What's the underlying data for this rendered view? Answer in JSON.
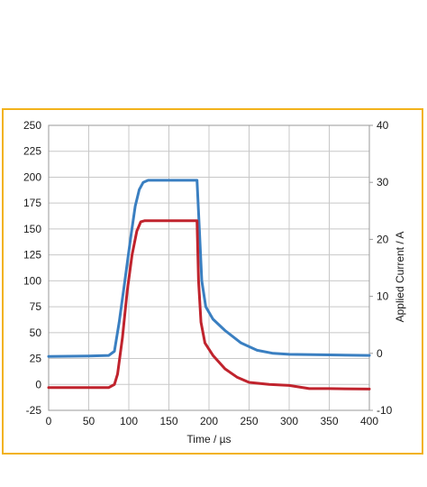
{
  "colors": {
    "frame_border": "#f2b21b",
    "grid": "#c8c8c8",
    "plot_border": "#9a9a9a",
    "series_blue": "#3a7fc1",
    "series_red": "#c0232d"
  },
  "chart_data": {
    "type": "line",
    "title": "",
    "xlabel": "Time / µs",
    "ylabel_left": "",
    "ylabel_right": "Applied Current / A",
    "xlim": [
      0,
      400
    ],
    "ylim_left": [
      -25,
      250
    ],
    "ylim_right": [
      -10,
      40
    ],
    "x_ticks": [
      "0",
      "50",
      "100",
      "150",
      "200",
      "250",
      "300",
      "350",
      "400"
    ],
    "y_ticks_left": [
      "250",
      "225",
      "200",
      "175",
      "150",
      "125",
      "100",
      "75",
      "50",
      "25",
      "0",
      "-25"
    ],
    "y_ticks_right": [
      "40",
      "30",
      "20",
      "10",
      "0",
      "-10"
    ],
    "grid": true,
    "legend": "none",
    "series": [
      {
        "axis": "left",
        "color": "#3a7fc1",
        "points": [
          [
            0,
            27
          ],
          [
            50,
            27.5
          ],
          [
            75,
            28
          ],
          [
            82,
            32
          ],
          [
            88,
            60
          ],
          [
            95,
            100
          ],
          [
            102,
            140
          ],
          [
            108,
            172
          ],
          [
            113,
            188
          ],
          [
            118,
            195
          ],
          [
            124,
            197
          ],
          [
            150,
            197
          ],
          [
            185,
            197
          ],
          [
            188,
            150
          ],
          [
            191,
            100
          ],
          [
            196,
            75
          ],
          [
            205,
            63
          ],
          [
            220,
            52
          ],
          [
            240,
            40
          ],
          [
            260,
            33
          ],
          [
            280,
            30
          ],
          [
            300,
            29
          ],
          [
            350,
            28.5
          ],
          [
            400,
            28
          ]
        ]
      },
      {
        "axis": "left",
        "color": "#c0232d",
        "points": [
          [
            0,
            -3
          ],
          [
            50,
            -3
          ],
          [
            75,
            -3
          ],
          [
            82,
            0
          ],
          [
            86,
            10
          ],
          [
            92,
            45
          ],
          [
            98,
            90
          ],
          [
            104,
            125
          ],
          [
            110,
            148
          ],
          [
            115,
            157
          ],
          [
            120,
            158
          ],
          [
            185,
            158
          ],
          [
            187,
            100
          ],
          [
            190,
            60
          ],
          [
            195,
            40
          ],
          [
            205,
            28
          ],
          [
            220,
            15
          ],
          [
            235,
            7
          ],
          [
            250,
            2
          ],
          [
            275,
            0
          ],
          [
            300,
            -1
          ],
          [
            325,
            -4
          ],
          [
            350,
            -4
          ],
          [
            400,
            -4.5
          ]
        ]
      }
    ]
  }
}
